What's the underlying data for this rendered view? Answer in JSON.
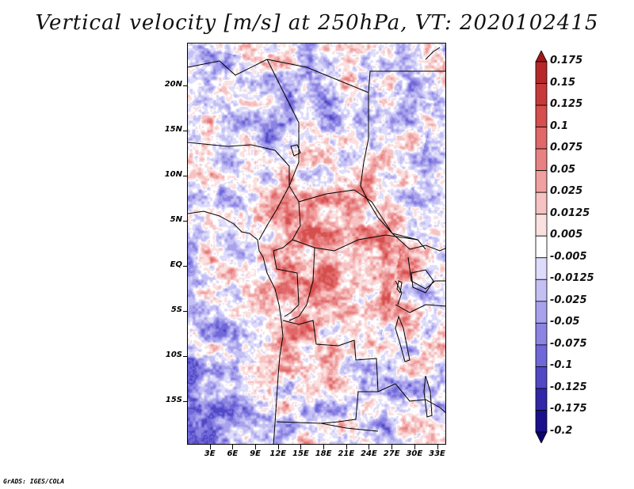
{
  "title": "Vertical velocity [m/s] at 250hPa, VT: 2020102415",
  "footer": "GrADS: IGES/COLA",
  "map": {
    "lat_labels": [
      "20N",
      "15N",
      "10N",
      "5N",
      "EQ",
      "5S",
      "10S",
      "15S"
    ],
    "lat_values": [
      20,
      15,
      10,
      5,
      0,
      -5,
      -10,
      -15
    ],
    "lon_labels": [
      "3E",
      "6E",
      "9E",
      "12E",
      "15E",
      "18E",
      "21E",
      "24E",
      "27E",
      "30E",
      "33E"
    ],
    "lon_values": [
      3,
      6,
      9,
      12,
      15,
      18,
      21,
      24,
      27,
      30,
      33
    ],
    "extent": {
      "lon_min": 0,
      "lon_max": 34.2,
      "lat_min": -19.8,
      "lat_max": 24.7
    }
  },
  "colorbar": {
    "labels": [
      "0.175",
      "0.15",
      "0.125",
      "0.1",
      "0.075",
      "0.05",
      "0.025",
      "0.0125",
      "0.005",
      "-0.005",
      "-0.0125",
      "-0.025",
      "-0.05",
      "-0.075",
      "-0.1",
      "-0.125",
      "-0.175",
      "-0.2"
    ],
    "colors": [
      "#a01818",
      "#b82828",
      "#c83a3a",
      "#d64e4e",
      "#e06868",
      "#e88282",
      "#f0a0a0",
      "#f6c2c2",
      "#fbe0e0",
      "#ffffff",
      "#dedcfa",
      "#c4c0f4",
      "#a8a2ec",
      "#8c84e2",
      "#7068d8",
      "#5048c4",
      "#3028a8",
      "#1a108c",
      "#0c0470"
    ]
  }
}
